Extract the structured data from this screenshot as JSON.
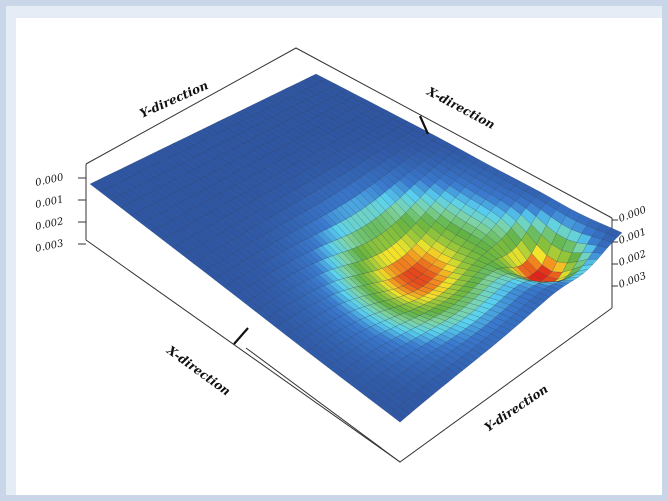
{
  "chart_data": {
    "type": "surface",
    "title": "",
    "axes": {
      "x_label": "X-direction",
      "y_label": "Y-direction",
      "z_ticks": [
        "0.000",
        "0.001",
        "0.002",
        "0.003"
      ],
      "z_range": [
        0.0,
        0.003
      ],
      "z_inverted": true
    },
    "grid": {
      "nx": 46,
      "ny": 30
    },
    "surface": {
      "description_type": "deflection-field",
      "baseline_value": 0.0,
      "peaks": [
        {
          "x": 0.86,
          "y": 0.84,
          "value": 0.003,
          "spread_x": 0.11,
          "spread_y": 0.1
        },
        {
          "x": 0.6,
          "y": 0.62,
          "value": 0.0019,
          "spread_x": 0.16,
          "spread_y": 0.22
        },
        {
          "x": 0.72,
          "y": 0.5,
          "value": 0.0015,
          "spread_x": 0.22,
          "spread_y": 0.28
        }
      ]
    },
    "colormap": [
      {
        "stop": 0.0,
        "color": "#2f56a3"
      },
      {
        "stop": 0.18,
        "color": "#3a7bd0"
      },
      {
        "stop": 0.3,
        "color": "#5ad2f0"
      },
      {
        "stop": 0.42,
        "color": "#7fd3a0"
      },
      {
        "stop": 0.55,
        "color": "#62b342"
      },
      {
        "stop": 0.7,
        "color": "#9cc83a"
      },
      {
        "stop": 0.8,
        "color": "#f2e52a"
      },
      {
        "stop": 0.9,
        "color": "#f28a1e"
      },
      {
        "stop": 1.0,
        "color": "#e0241a"
      }
    ]
  },
  "labels": {
    "y_back": "Y-direction",
    "x_back": "X-direction",
    "x_front": "X-direction",
    "y_front": "Y-direction",
    "z_left": [
      "0.000",
      "0.001",
      "0.002",
      "0.003"
    ],
    "z_right": [
      "0.000",
      "0.001",
      "0.002",
      "0.003"
    ]
  },
  "colors": {
    "background_frame": "#c9d6e8",
    "panel": "#ffffff",
    "mesh_line": "#1b2a44"
  }
}
